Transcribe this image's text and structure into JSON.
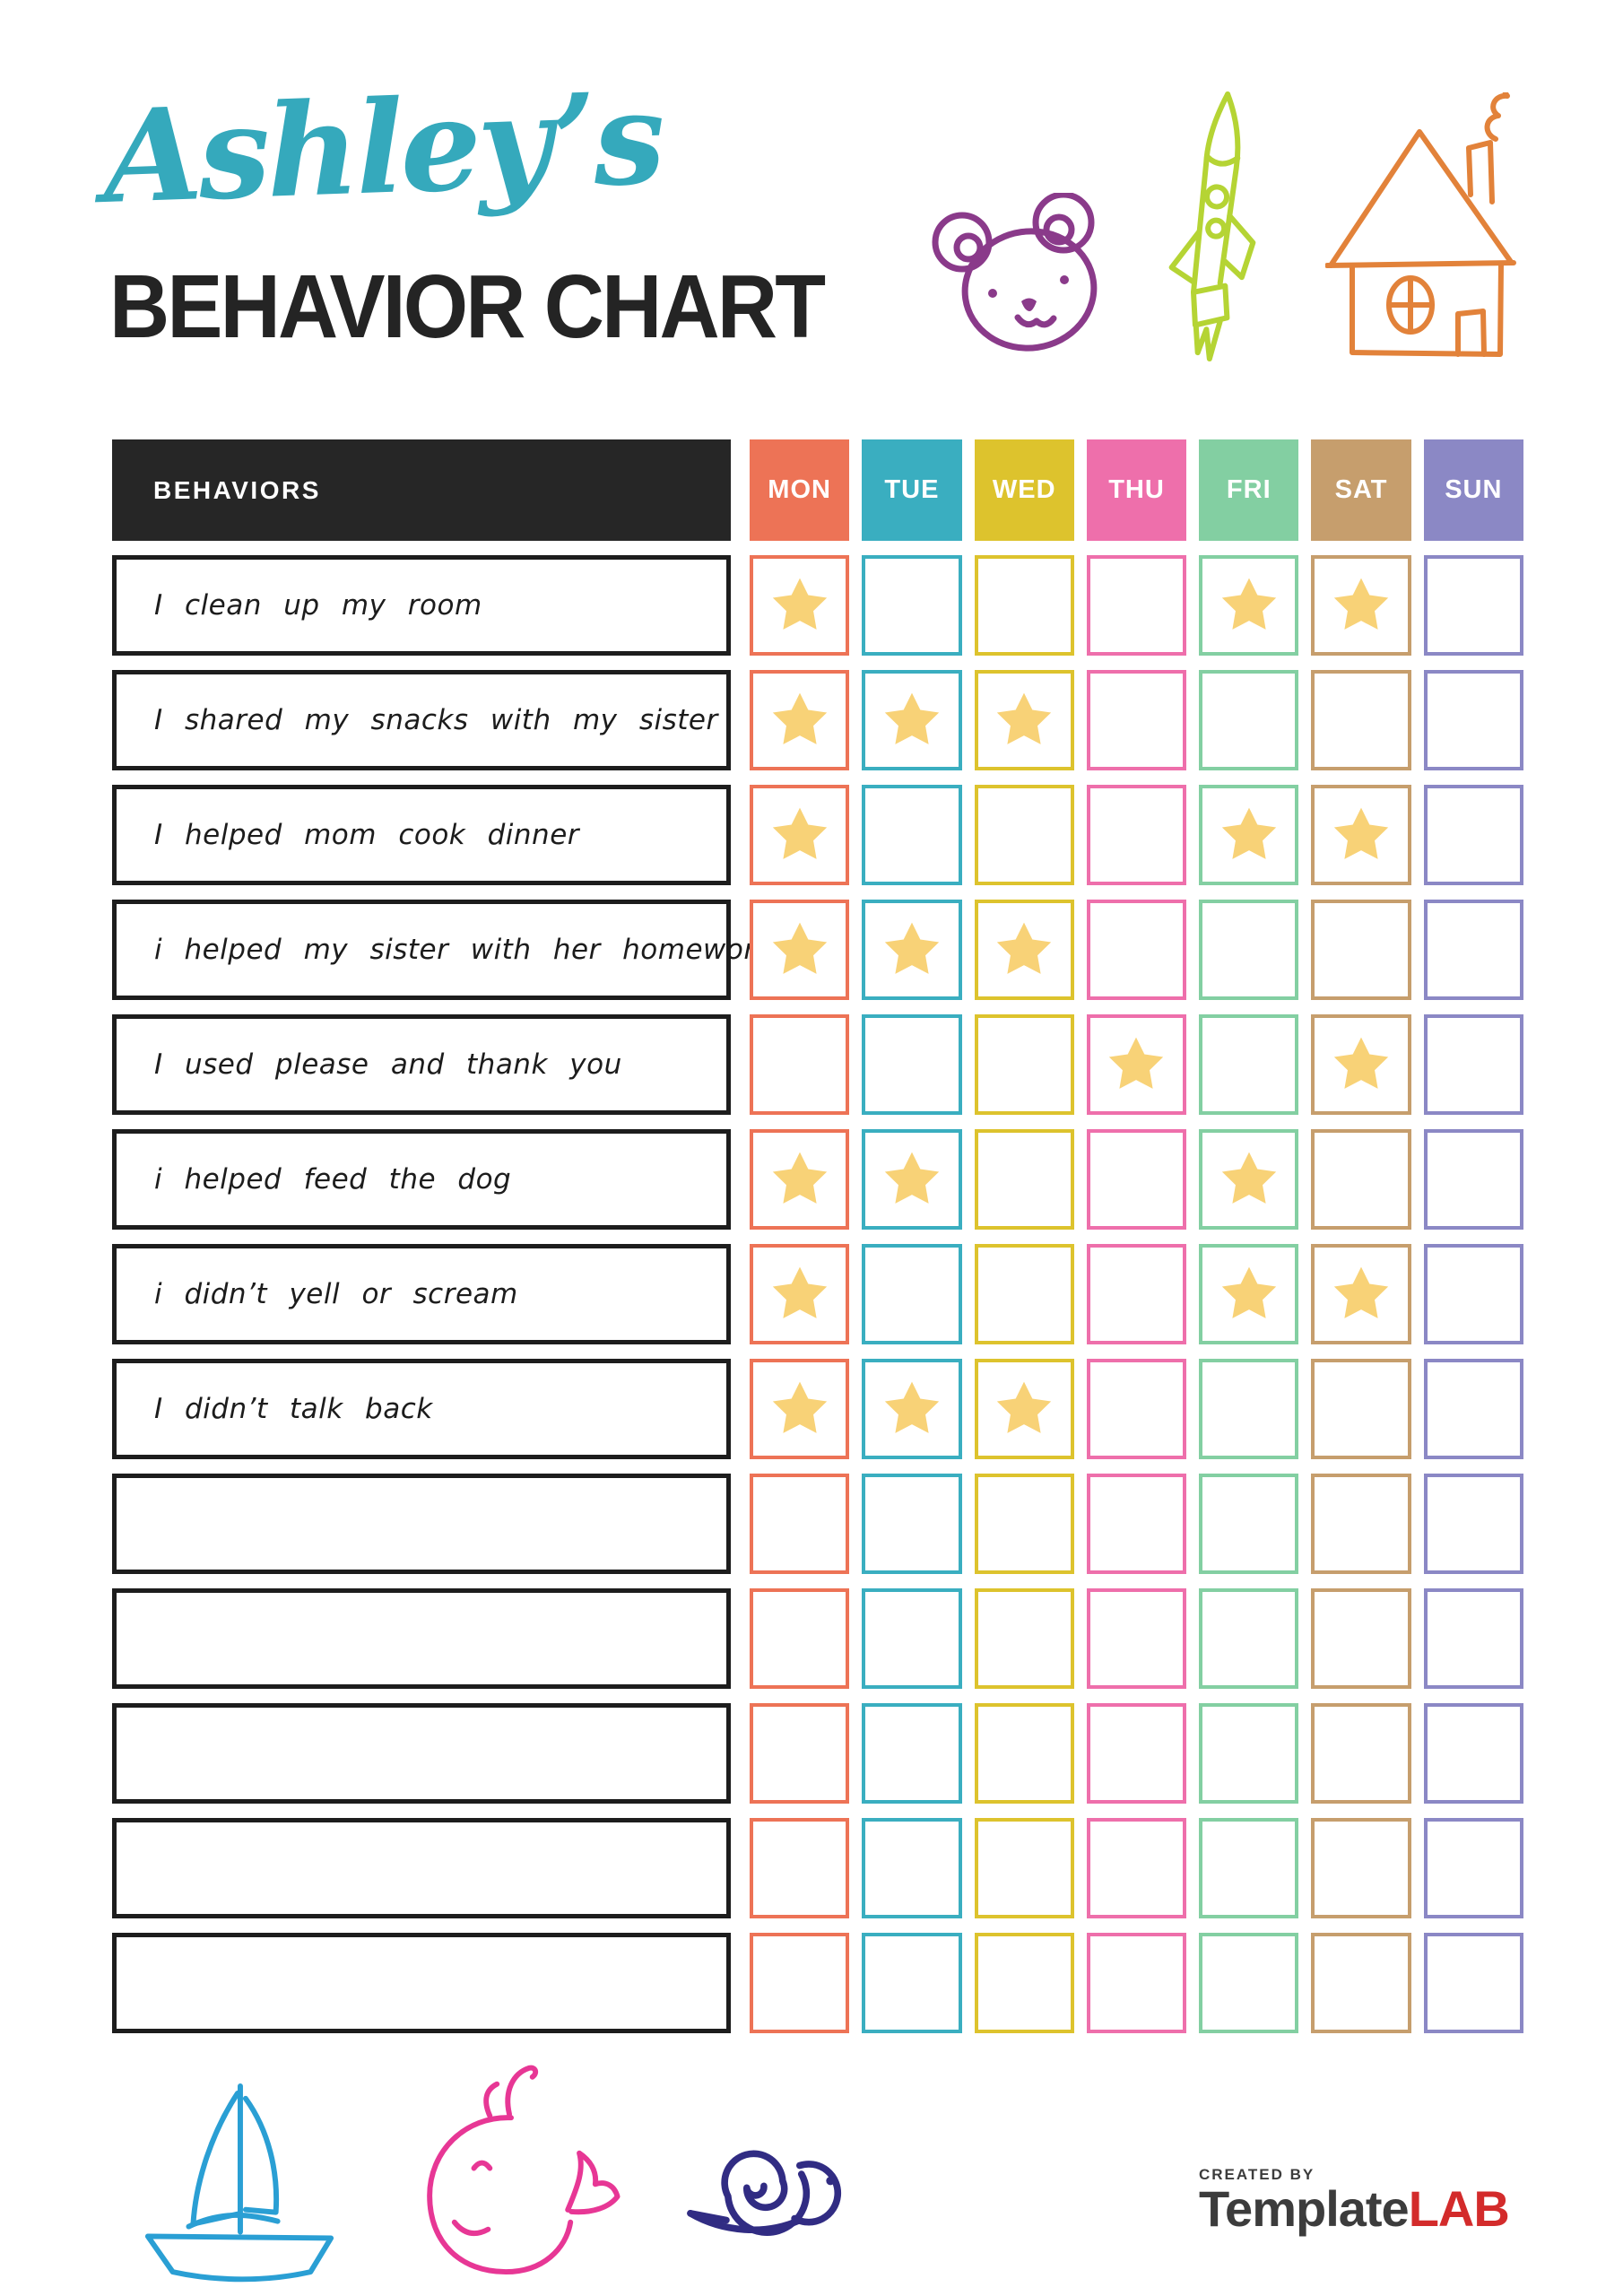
{
  "header": {
    "name": "Ashley’s",
    "title": "BEHAVIOR CHART"
  },
  "table": {
    "header_label": "BEHAVIORS",
    "header_bg": "#262626",
    "star_color": "#f8d277",
    "days": [
      {
        "label": "MON",
        "color": "#ed7356"
      },
      {
        "label": "TUE",
        "color": "#3aaec0"
      },
      {
        "label": "WED",
        "color": "#ddc32d"
      },
      {
        "label": "THU",
        "color": "#ee6fab"
      },
      {
        "label": "FRI",
        "color": "#83cfa2"
      },
      {
        "label": "SAT",
        "color": "#c69e6d"
      },
      {
        "label": "SUN",
        "color": "#8b88c5"
      }
    ],
    "rows": [
      {
        "behavior": "I clean up my room",
        "stars": [
          "MON",
          "FRI",
          "SAT"
        ]
      },
      {
        "behavior": "I shared my snacks with my sister",
        "stars": [
          "MON",
          "TUE",
          "WED"
        ]
      },
      {
        "behavior": "I helped mom cook dinner",
        "stars": [
          "MON",
          "FRI",
          "SAT"
        ]
      },
      {
        "behavior": "i helped my sister with her homework",
        "stars": [
          "MON",
          "TUE",
          "WED"
        ]
      },
      {
        "behavior": "I used please and thank you",
        "stars": [
          "THU",
          "SAT"
        ]
      },
      {
        "behavior": "i helped feed the dog",
        "stars": [
          "MON",
          "TUE",
          "FRI"
        ]
      },
      {
        "behavior": "i didn’t yell or scream",
        "stars": [
          "MON",
          "FRI",
          "SAT"
        ]
      },
      {
        "behavior": "I didn’t talk back",
        "stars": [
          "MON",
          "TUE",
          "WED"
        ]
      },
      {
        "behavior": "",
        "stars": []
      },
      {
        "behavior": "",
        "stars": []
      },
      {
        "behavior": "",
        "stars": []
      },
      {
        "behavior": "",
        "stars": []
      },
      {
        "behavior": "",
        "stars": []
      }
    ]
  },
  "decorations": {
    "top": [
      {
        "icon": "teddy-bear-doodle",
        "color": "#8a3a8a"
      },
      {
        "icon": "rocket-doodle",
        "color": "#b5d434"
      },
      {
        "icon": "house-doodle",
        "color": "#e2823a"
      }
    ],
    "bottom": [
      {
        "icon": "sailboat-doodle",
        "color": "#2a9fd4"
      },
      {
        "icon": "whale-doodle",
        "color": "#e73795"
      },
      {
        "icon": "snail-doodle",
        "color": "#312c83"
      }
    ]
  },
  "footer": {
    "created_by": "CREATED BY",
    "brand_template": "Template",
    "brand_lab": "LAB"
  }
}
